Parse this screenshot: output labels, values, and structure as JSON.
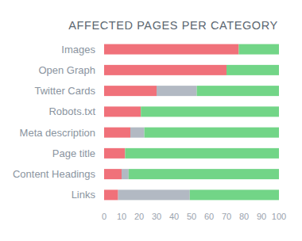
{
  "chart_data": {
    "type": "bar",
    "orientation": "horizontal",
    "stacked": true,
    "title": "AFFECTED PAGES PER CATEGORY",
    "categories": [
      "Images",
      "Open Graph",
      "Twitter Cards",
      "Robots.txt",
      "Meta description",
      "Page title",
      "Content Headings",
      "Links"
    ],
    "series": [
      {
        "color": "#f0717a",
        "values": [
          77,
          70,
          30,
          21,
          15,
          12,
          10,
          8
        ]
      },
      {
        "color": "#b2b9c3",
        "values": [
          0,
          0,
          23,
          0,
          8,
          0,
          4,
          41
        ]
      },
      {
        "color": "#72d587",
        "values": [
          23,
          30,
          47,
          79,
          77,
          88,
          86,
          51
        ]
      }
    ],
    "xlim": [
      0,
      100
    ],
    "xticks": [
      0,
      10,
      20,
      30,
      40,
      50,
      60,
      70,
      80,
      90,
      100
    ],
    "grid": false
  }
}
